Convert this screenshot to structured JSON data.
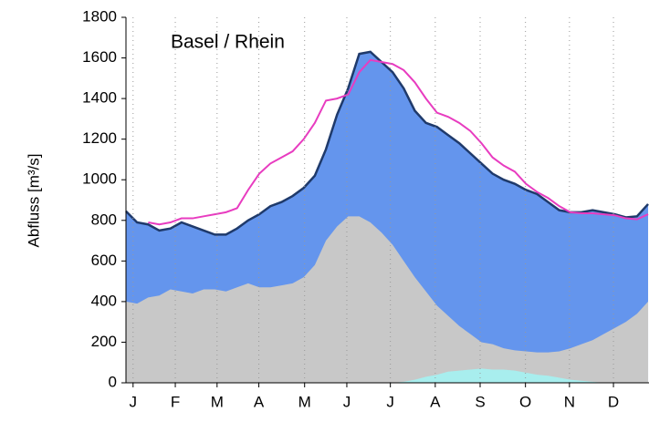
{
  "chart_data": {
    "type": "area",
    "annotation": "Basel / Rhein",
    "y_label": "Abfluss [m³/s]",
    "x": [
      0,
      0.25,
      0.5,
      0.75,
      1,
      1.25,
      1.5,
      1.75,
      2,
      2.25,
      2.5,
      2.75,
      3,
      3.25,
      3.5,
      3.75,
      4,
      4.25,
      4.5,
      4.75,
      5,
      5.25,
      5.5,
      5.75,
      6,
      6.25,
      6.5,
      6.75,
      7,
      7.25,
      7.5,
      7.75,
      8,
      8.25,
      8.5,
      8.75,
      9,
      9.25,
      9.5,
      9.75,
      10,
      10.25,
      10.5,
      10.75,
      11,
      11.25,
      11.5,
      11.75
    ],
    "series": [
      {
        "kind": "area",
        "color": "#6495ed",
        "edge_color": "#1f3a6b",
        "values": [
          845,
          790,
          780,
          750,
          760,
          790,
          770,
          750,
          730,
          730,
          760,
          800,
          830,
          870,
          890,
          920,
          960,
          1020,
          1150,
          1320,
          1450,
          1620,
          1630,
          1580,
          1530,
          1450,
          1340,
          1280,
          1260,
          1220,
          1180,
          1130,
          1080,
          1030,
          1000,
          980,
          950,
          930,
          890,
          850,
          840,
          840,
          850,
          840,
          830,
          815,
          820,
          880
        ]
      },
      {
        "kind": "area",
        "color": "#c8c8c8",
        "values": [
          400,
          390,
          420,
          430,
          460,
          450,
          440,
          460,
          460,
          450,
          470,
          490,
          470,
          470,
          480,
          490,
          520,
          580,
          700,
          770,
          820,
          820,
          790,
          740,
          680,
          600,
          520,
          450,
          380,
          330,
          280,
          240,
          200,
          190,
          170,
          160,
          155,
          150,
          150,
          155,
          170,
          190,
          210,
          240,
          270,
          300,
          340,
          400
        ]
      },
      {
        "kind": "area",
        "color": "#a8eeee",
        "values": [
          0,
          0,
          0,
          0,
          0,
          0,
          0,
          0,
          0,
          0,
          0,
          0,
          0,
          0,
          0,
          0,
          0,
          0,
          0,
          0,
          0,
          0,
          0,
          0,
          0,
          5,
          15,
          30,
          40,
          55,
          60,
          65,
          70,
          65,
          65,
          60,
          50,
          40,
          35,
          25,
          15,
          10,
          5,
          0,
          0,
          0,
          0,
          0
        ]
      },
      {
        "kind": "line",
        "color": "#e83cc0",
        "values": [
          null,
          null,
          790,
          780,
          790,
          810,
          810,
          820,
          830,
          840,
          860,
          950,
          1030,
          1080,
          1110,
          1140,
          1200,
          1280,
          1390,
          1400,
          1420,
          1530,
          1590,
          1580,
          1570,
          1540,
          1480,
          1400,
          1330,
          1310,
          1280,
          1240,
          1180,
          1110,
          1070,
          1040,
          980,
          940,
          910,
          870,
          840,
          835,
          835,
          830,
          825,
          810,
          805,
          830
        ]
      }
    ],
    "xlim": [
      0,
      11.77
    ],
    "xticks": [
      {
        "value": 0.16,
        "label": "J"
      },
      {
        "value": 1.11,
        "label": "F"
      },
      {
        "value": 2.05,
        "label": "M"
      },
      {
        "value": 2.99,
        "label": "A"
      },
      {
        "value": 4.02,
        "label": "M"
      },
      {
        "value": 4.97,
        "label": "J"
      },
      {
        "value": 5.95,
        "label": "J"
      },
      {
        "value": 6.96,
        "label": "A"
      },
      {
        "value": 7.97,
        "label": "S"
      },
      {
        "value": 8.99,
        "label": "O"
      },
      {
        "value": 9.98,
        "label": "N"
      },
      {
        "value": 10.97,
        "label": "D"
      }
    ],
    "ylim": [
      0,
      1800
    ],
    "yticks": [
      0,
      200,
      400,
      600,
      800,
      1000,
      1200,
      1400,
      1600,
      1800
    ],
    "grid_x": true
  }
}
